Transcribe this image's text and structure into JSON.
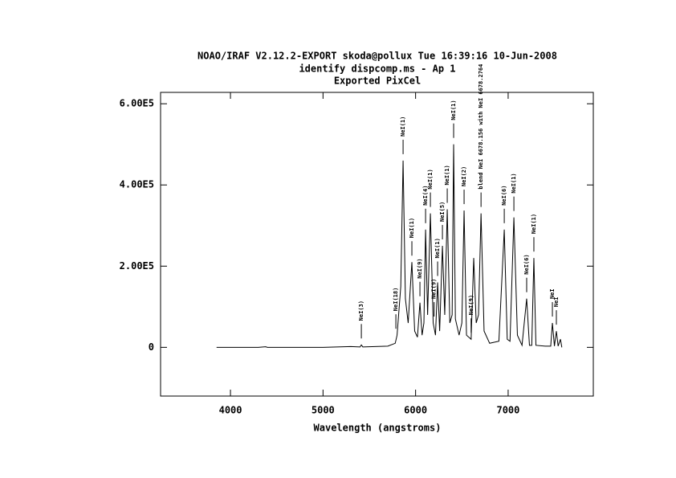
{
  "chart_data": {
    "type": "line",
    "title": "NOAO/IRAF V2.12.2-EXPORT skoda@pollux Tue 16:39:16 10-Jun-2008",
    "subtitle": "identify dispcomp.ms - Ap 1",
    "subtitle2": "Exported PixCel",
    "x_label": "Wavelength (angstroms)",
    "color": "#000000",
    "xlim": [
      3245,
      7920
    ],
    "ylim": [
      -120000,
      628000
    ],
    "xticks": [
      4000,
      5000,
      6000,
      7000
    ],
    "yticks": [
      0,
      {
        "value": 200000,
        "label": "2.00E5"
      },
      {
        "value": 400000,
        "label": "4.00E5"
      },
      {
        "value": 600000,
        "label": "6.00E5"
      }
    ],
    "x": [
      3850,
      4000,
      4300,
      4380,
      4400,
      4500,
      5000,
      5300,
      5400,
      5414,
      5430,
      5700,
      5780,
      5800,
      5840,
      5865,
      5890,
      5920,
      5960,
      5990,
      6020,
      6047,
      6070,
      6090,
      6108,
      6130,
      6160,
      6190,
      6215,
      6238,
      6260,
      6290,
      6315,
      6342,
      6370,
      6395,
      6411,
      6430,
      6470,
      6500,
      6524,
      6550,
      6600,
      6628,
      6655,
      6680,
      6707,
      6740,
      6800,
      6900,
      6958,
      6990,
      7020,
      7062,
      7100,
      7150,
      7200,
      7230,
      7255,
      7278,
      7300,
      7400,
      7460,
      7478,
      7500,
      7521,
      7540,
      7565,
      7580
    ],
    "values": [
      0,
      0,
      0,
      1500,
      0,
      0,
      0,
      2000,
      1000,
      6000,
      1000,
      3000,
      10000,
      30000,
      150000,
      460000,
      120000,
      60000,
      210000,
      40000,
      25000,
      110000,
      30000,
      60000,
      290000,
      80000,
      330000,
      60000,
      30000,
      160000,
      40000,
      250000,
      80000,
      340000,
      60000,
      80000,
      500000,
      70000,
      30000,
      60000,
      337000,
      30000,
      20000,
      220000,
      60000,
      80000,
      330000,
      40000,
      10000,
      15000,
      290000,
      20000,
      15000,
      320000,
      30000,
      5000,
      120000,
      5000,
      5000,
      220000,
      5000,
      3000,
      3000,
      60000,
      3000,
      40000,
      3000,
      20000,
      0
    ],
    "annotations": [
      {
        "x": 5414,
        "label": "NeI(3)"
      },
      {
        "x": 5787,
        "label": "NeI(18)"
      },
      {
        "x": 5865,
        "label": "NeI(1)"
      },
      {
        "x": 5960,
        "label": "NeI(1)"
      },
      {
        "x": 6047,
        "label": "NeI(9)"
      },
      {
        "x": 6108,
        "label": "NeI(4)"
      },
      {
        "x": 6160,
        "label": "NeI(1)"
      },
      {
        "x": 6200,
        "label": "NeI(9)"
      },
      {
        "x": 6238,
        "label": "NeI(1)"
      },
      {
        "x": 6290,
        "label": "NeI(5)"
      },
      {
        "x": 6342,
        "label": "NeI(1)"
      },
      {
        "x": 6411,
        "label": "NeI(1)"
      },
      {
        "x": 6524,
        "label": "NeI(2)"
      },
      {
        "x": 6600,
        "label": "NeI(9)"
      },
      {
        "x": 6707,
        "label": "blend NeI 6678.156 with NeI 6678.2764"
      },
      {
        "x": 6958,
        "label": "NeI(6)"
      },
      {
        "x": 7062,
        "label": "NeI(1)"
      },
      {
        "x": 7200,
        "label": "NeI(6)"
      },
      {
        "x": 7278,
        "label": "NeI(1)"
      },
      {
        "x": 7478,
        "label": "NeI"
      },
      {
        "x": 7521,
        "label": "NeI"
      }
    ]
  }
}
